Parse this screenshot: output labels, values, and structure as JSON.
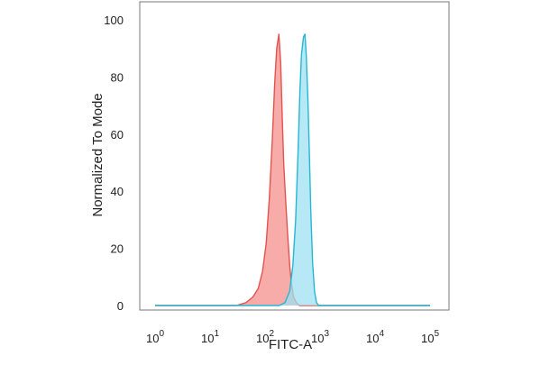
{
  "chart_data": {
    "type": "area",
    "xlabel": "FITC-A",
    "ylabel": "Normalized To Mode",
    "x_scale": "log",
    "xlim": [
      1,
      100000
    ],
    "ylim": [
      0,
      100
    ],
    "grid": false,
    "x_ticks": [
      {
        "value": 1,
        "base": "10",
        "exp": "0"
      },
      {
        "value": 10,
        "base": "10",
        "exp": "1"
      },
      {
        "value": 100,
        "base": "10",
        "exp": "2"
      },
      {
        "value": 1000,
        "base": "10",
        "exp": "3"
      },
      {
        "value": 10000,
        "base": "10",
        "exp": "4"
      },
      {
        "value": 100000,
        "base": "10",
        "exp": "5"
      }
    ],
    "y_ticks": [
      0,
      20,
      40,
      60,
      80,
      100
    ],
    "series": [
      {
        "color": "#e3534f",
        "fill": "#f6a3a0",
        "points": [
          [
            1,
            0
          ],
          [
            30,
            0
          ],
          [
            45,
            1
          ],
          [
            60,
            3
          ],
          [
            75,
            6
          ],
          [
            90,
            12
          ],
          [
            105,
            22
          ],
          [
            120,
            38
          ],
          [
            135,
            58
          ],
          [
            150,
            78
          ],
          [
            163,
            90
          ],
          [
            178,
            95
          ],
          [
            192,
            85
          ],
          [
            205,
            66
          ],
          [
            218,
            50
          ],
          [
            235,
            38
          ],
          [
            255,
            26
          ],
          [
            280,
            14
          ],
          [
            300,
            8
          ],
          [
            330,
            3
          ],
          [
            370,
            1
          ],
          [
            420,
            0
          ],
          [
            100000,
            0
          ]
        ]
      },
      {
        "color": "#27b7d3",
        "fill": "#9fe0f2",
        "points": [
          [
            1,
            0
          ],
          [
            180,
            0
          ],
          [
            230,
            1
          ],
          [
            280,
            5
          ],
          [
            320,
            14
          ],
          [
            360,
            30
          ],
          [
            400,
            55
          ],
          [
            430,
            75
          ],
          [
            460,
            88
          ],
          [
            500,
            94
          ],
          [
            530,
            95
          ],
          [
            560,
            88
          ],
          [
            600,
            72
          ],
          [
            640,
            52
          ],
          [
            680,
            32
          ],
          [
            730,
            15
          ],
          [
            790,
            5
          ],
          [
            860,
            1
          ],
          [
            950,
            0
          ],
          [
            100000,
            0
          ]
        ]
      }
    ]
  }
}
